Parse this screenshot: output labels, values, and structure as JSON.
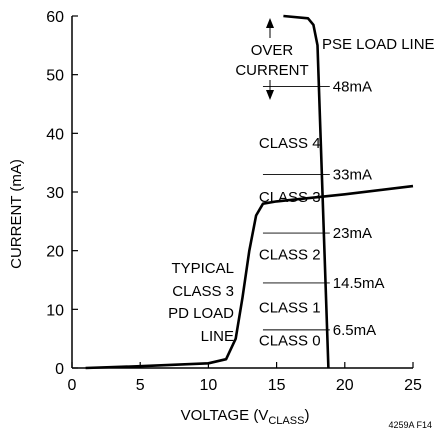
{
  "chart_data": {
    "type": "line",
    "xlabel_main": "VOLTAGE (V",
    "xlabel_sub": "CLASS",
    "xlabel_end": ")",
    "ylabel": "CURRENT (mA)",
    "xlim": [
      0,
      25
    ],
    "ylim": [
      0,
      60
    ],
    "xticks": [
      0,
      5,
      10,
      15,
      20,
      25
    ],
    "yticks": [
      0,
      10,
      20,
      30,
      40,
      50,
      60
    ],
    "grid": false,
    "series": [
      {
        "points": [
          [
            1,
            0
          ],
          [
            5,
            0.3
          ],
          [
            10,
            0.8
          ],
          [
            11.3,
            1.5
          ],
          [
            12,
            5
          ],
          [
            12.5,
            12
          ],
          [
            13,
            20
          ],
          [
            13.5,
            26
          ],
          [
            14,
            28
          ],
          [
            15,
            28.4
          ],
          [
            20,
            29.6
          ],
          [
            25,
            31
          ]
        ]
      },
      {
        "points": [
          [
            15.5,
            60
          ],
          [
            17.3,
            59.6
          ],
          [
            17.7,
            58.5
          ],
          [
            18,
            55
          ],
          [
            18.8,
            0
          ]
        ]
      }
    ],
    "thresholds": [
      {
        "label": "6.5mA",
        "value": 6.5,
        "x_start": 14
      },
      {
        "label": "14.5mA",
        "value": 14.5,
        "x_start": 14
      },
      {
        "label": "23mA",
        "value": 23,
        "x_start": 14
      },
      {
        "label": "33mA",
        "value": 33,
        "x_start": 14
      },
      {
        "label": "48mA",
        "value": 48,
        "x_start": 14
      }
    ],
    "class_labels": [
      {
        "label": "CLASS 0",
        "x": 13.7,
        "y": 3.8
      },
      {
        "label": "CLASS 1",
        "x": 13.7,
        "y": 9.5
      },
      {
        "label": "CLASS 2",
        "x": 13.7,
        "y": 18.5
      },
      {
        "label": "CLASS 3",
        "x": 13.7,
        "y": 28.3
      },
      {
        "label": "CLASS 4",
        "x": 13.7,
        "y": 37.5
      }
    ],
    "annotations": {
      "pse_load_line": "PSE LOAD LINE",
      "over_current_line1": "OVER",
      "over_current_line2": "CURRENT",
      "pd_load_line": [
        "TYPICAL",
        "CLASS 3",
        "PD LOAD",
        "LINE"
      ]
    },
    "figure_id": "4259A F14"
  }
}
